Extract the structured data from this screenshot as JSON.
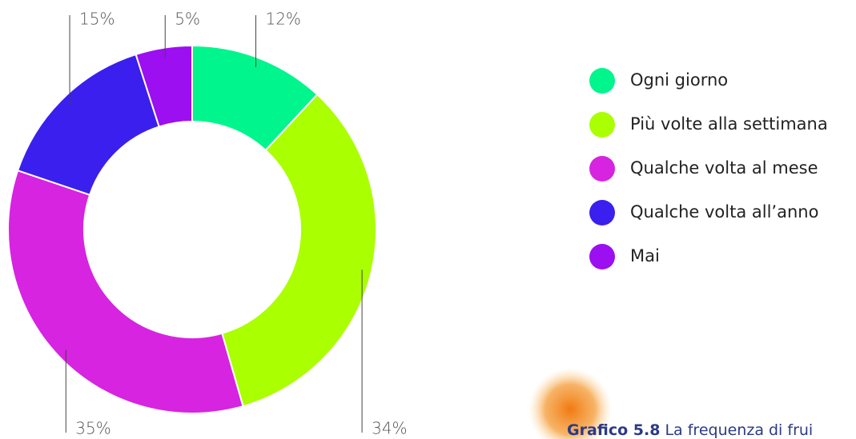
{
  "chart_data": {
    "type": "donut",
    "categories": [
      "Ogni giorno",
      "Più volte alla settimana",
      "Qualche volta al mese",
      "Qualche volta all’anno",
      "Mai"
    ],
    "values": [
      12,
      34,
      35,
      15,
      5
    ],
    "value_labels": [
      "12%",
      "34%",
      "35%",
      "15%",
      "5%"
    ],
    "colors": [
      "#00f58c",
      "#aaff00",
      "#d624e0",
      "#3a1fef",
      "#9b0ff0"
    ],
    "legend": "right",
    "caption_number": "Grafico 5.8",
    "caption": "La frequenza di frui"
  }
}
